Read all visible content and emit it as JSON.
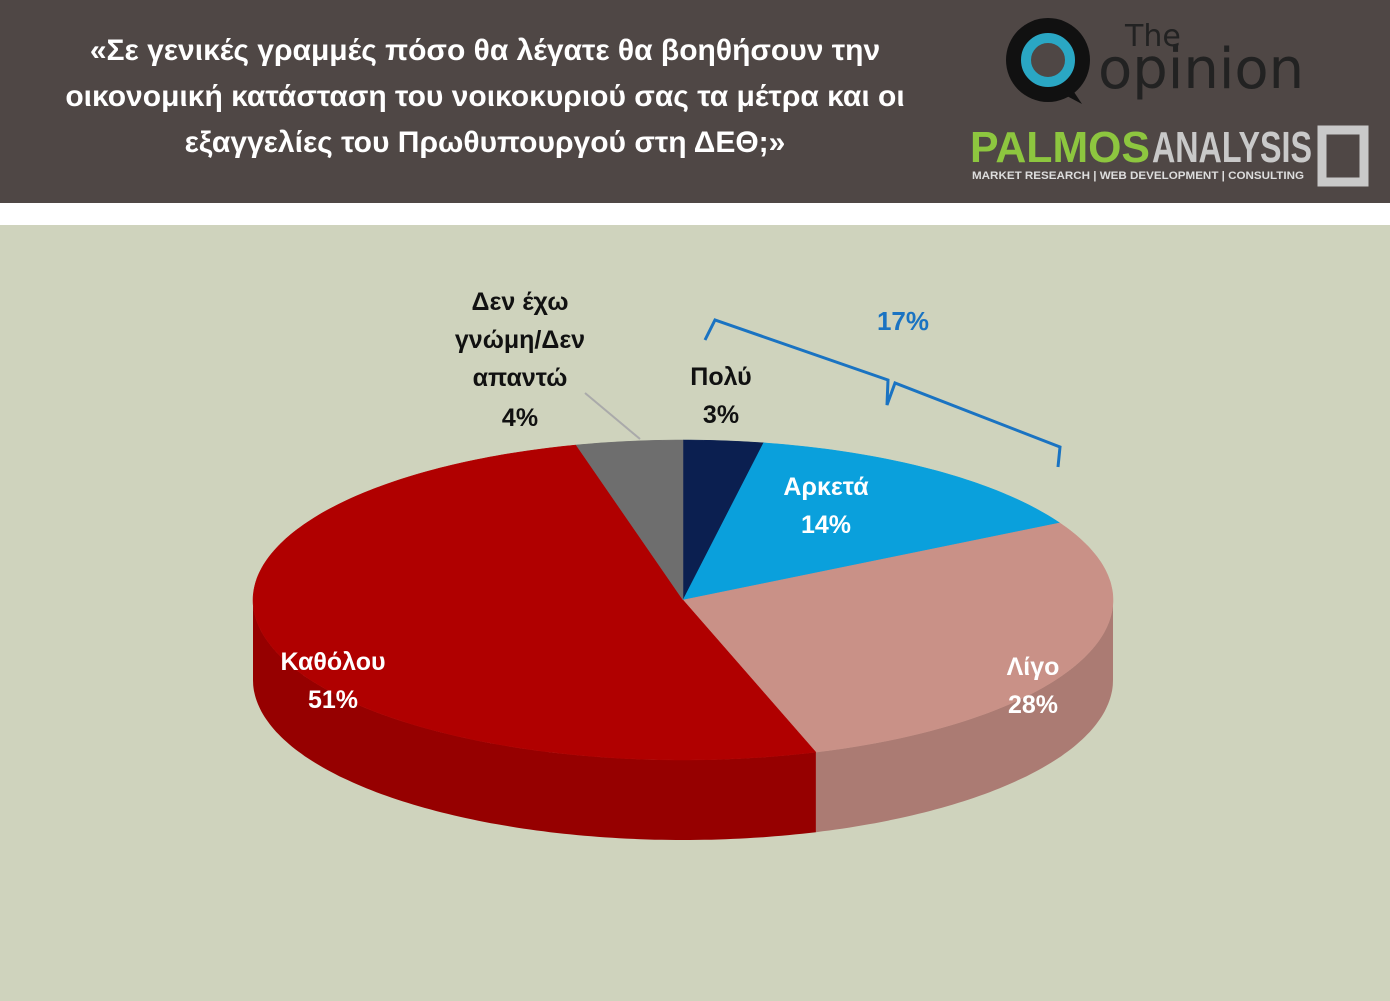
{
  "header": {
    "title": "«Σε γενικές γραμμές πόσο θα λέγατε θα βοηθήσουν την οικονομική κατάσταση του νοικοκυριού σας τα μέτρα και οι εξαγγελίες του Πρωθυπουργού στη ΔΕΘ;»",
    "logo_top_small": "The",
    "logo_top": "opinion",
    "logo_bottom_a": "PALMOS",
    "logo_bottom_b": "ANALYSIS",
    "logo_tagline": "MARKET RESEARCH | WEB DEVELOPMENT | CONSULTING"
  },
  "chart_data": {
    "type": "pie",
    "categories": [
      "Πολύ",
      "Αρκετά",
      "Λίγο",
      "Καθόλου",
      "Δεν έχω γνώμη/Δεν απαντώ"
    ],
    "values": [
      3,
      14,
      28,
      51,
      4
    ],
    "value_labels": [
      "3%",
      "14%",
      "28%",
      "51%",
      "4%"
    ],
    "colors": [
      "#0b1f50",
      "#0aa0dc",
      "#c99187",
      "#b00000",
      "#6e6e6e"
    ],
    "annotation": "17%"
  }
}
